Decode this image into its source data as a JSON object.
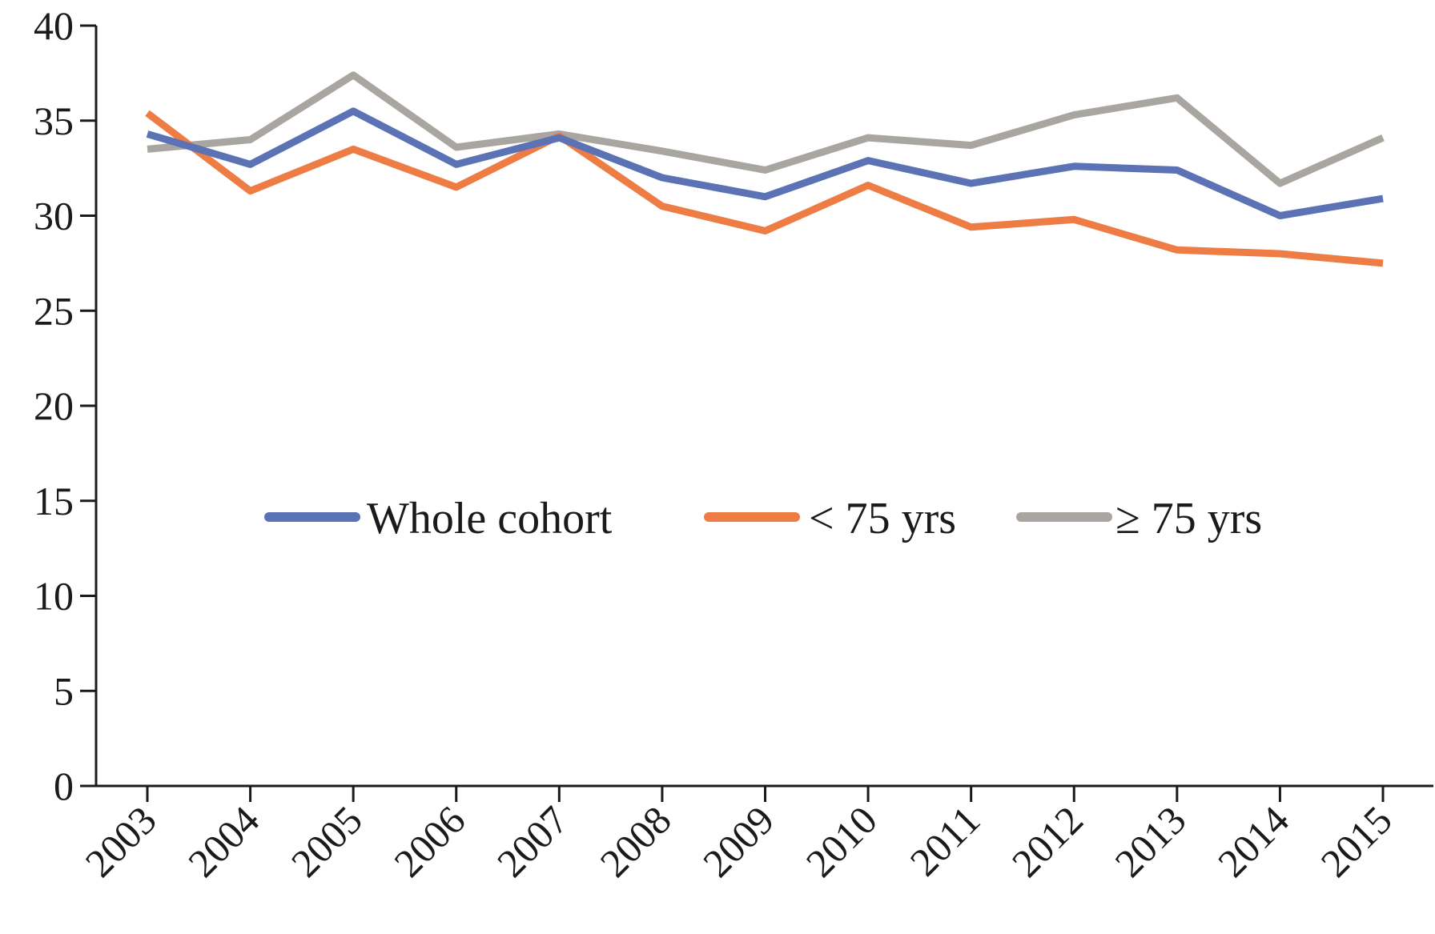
{
  "chart_data": {
    "type": "line",
    "title": "",
    "xlabel": "",
    "ylabel": "",
    "x": [
      "2003",
      "2004",
      "2005",
      "2006",
      "2007",
      "2008",
      "2009",
      "2010",
      "2011",
      "2012",
      "2013",
      "2014",
      "2015"
    ],
    "ylim": [
      0,
      40
    ],
    "yticks": [
      "0",
      "5",
      "10",
      "15",
      "20",
      "25",
      "30",
      "35",
      "40"
    ],
    "grid": false,
    "legend_position": "center",
    "series": [
      {
        "name": "Whole cohort",
        "color": "#5b72b5",
        "values": [
          34.3,
          32.7,
          35.5,
          32.7,
          34.1,
          32.0,
          31.0,
          32.9,
          31.7,
          32.6,
          32.4,
          30.0,
          30.9
        ]
      },
      {
        "name": "< 75 yrs",
        "color": "#ee7d45",
        "values": [
          35.4,
          31.3,
          33.5,
          31.5,
          34.2,
          30.5,
          29.2,
          31.6,
          29.4,
          29.8,
          28.2,
          28.0,
          27.5
        ]
      },
      {
        "name": "≥ 75 yrs",
        "color": "#a9a5a1",
        "values": [
          33.5,
          34.0,
          37.4,
          33.6,
          34.3,
          33.4,
          32.4,
          34.1,
          33.7,
          35.3,
          36.2,
          31.7,
          34.1
        ]
      }
    ]
  }
}
